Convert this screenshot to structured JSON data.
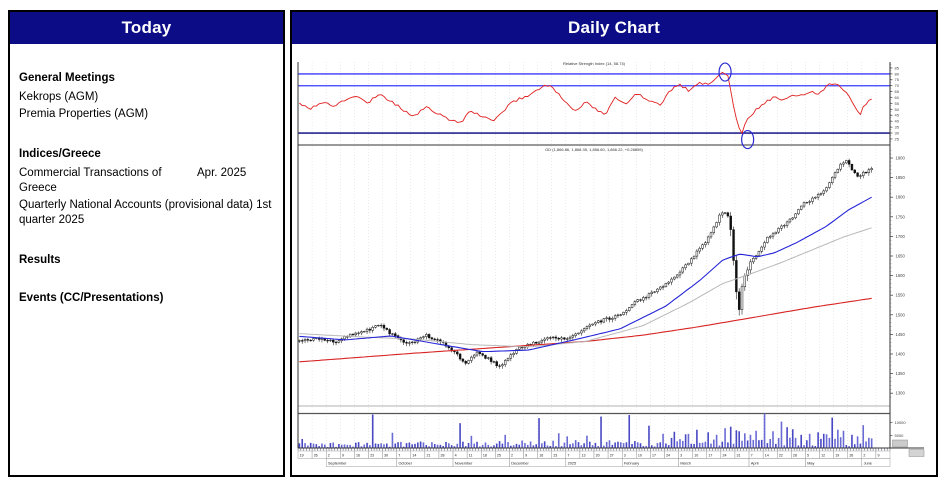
{
  "left_panel": {
    "title": "Today",
    "sections": [
      {
        "heading": "General Meetings",
        "items": [
          "Kekrops (AGM)",
          "Premia Properties (AGM)"
        ]
      },
      {
        "heading": "Indices/Greece",
        "items": [
          {
            "text": "Commercial Transactions of Greece",
            "note": "Apr. 2025"
          },
          {
            "text": "Quarterly National Accounts (provisional data) 1st quarter 2025",
            "note": ""
          }
        ]
      },
      {
        "heading": "Results",
        "items": []
      },
      {
        "heading": "Events (CC/Presentations)",
        "items": []
      }
    ]
  },
  "right_panel": {
    "title": "Daily Chart"
  },
  "chart_data": {
    "type": "candlestick",
    "title": "Daily Chart",
    "subcharts": [
      "rsi",
      "price",
      "volume"
    ],
    "colors": {
      "header_navy": "#0c0c86",
      "grid": "#dcdcdc",
      "rsi_line": "#e02020",
      "rsi_band_blue": "#3a3aff",
      "rsi_low_navy": "#00007a",
      "candle": "#111111",
      "ma_short": "#2525d8",
      "ma_mid": "#b8b8b8",
      "ma_long": "#d82525",
      "volume_bars": [
        "#6a6ad4",
        "#4848c4"
      ],
      "annotation_blue": "#2a2ad0"
    },
    "trading_days": 204,
    "axis_days": 210,
    "rsi": {
      "label": "Relative Strength Index (14, 58.74)",
      "band_levels": [
        80,
        70
      ],
      "oversold_level": 30,
      "axis_ticks": [
        85,
        80,
        75,
        70,
        65,
        60,
        55,
        50,
        45,
        40,
        35,
        30,
        25
      ],
      "ylim": [
        23,
        88
      ],
      "anchors": [
        [
          0,
          55
        ],
        [
          0.02,
          51
        ],
        [
          0.04,
          56
        ],
        [
          0.06,
          53
        ],
        [
          0.08,
          58
        ],
        [
          0.1,
          61
        ],
        [
          0.12,
          56
        ],
        [
          0.14,
          63
        ],
        [
          0.16,
          57
        ],
        [
          0.18,
          50
        ],
        [
          0.2,
          44
        ],
        [
          0.22,
          52
        ],
        [
          0.24,
          47
        ],
        [
          0.26,
          42
        ],
        [
          0.28,
          38
        ],
        [
          0.3,
          49
        ],
        [
          0.32,
          44
        ],
        [
          0.34,
          40
        ],
        [
          0.37,
          56
        ],
        [
          0.4,
          62
        ],
        [
          0.42,
          68
        ],
        [
          0.435,
          71
        ],
        [
          0.45,
          64
        ],
        [
          0.47,
          54
        ],
        [
          0.485,
          48
        ],
        [
          0.5,
          57
        ],
        [
          0.52,
          49
        ],
        [
          0.535,
          45
        ],
        [
          0.55,
          60
        ],
        [
          0.57,
          55
        ],
        [
          0.59,
          64
        ],
        [
          0.61,
          58
        ],
        [
          0.63,
          54
        ],
        [
          0.65,
          67
        ],
        [
          0.665,
          71
        ],
        [
          0.68,
          66
        ],
        [
          0.7,
          73
        ],
        [
          0.715,
          70
        ],
        [
          0.73,
          78
        ],
        [
          0.74,
          82
        ],
        [
          0.748,
          80
        ],
        [
          0.752,
          72
        ],
        [
          0.758,
          55
        ],
        [
          0.764,
          42
        ],
        [
          0.769,
          33
        ],
        [
          0.774,
          30
        ],
        [
          0.78,
          40
        ],
        [
          0.79,
          44
        ],
        [
          0.8,
          51
        ],
        [
          0.815,
          56
        ],
        [
          0.83,
          61
        ],
        [
          0.845,
          58
        ],
        [
          0.86,
          63
        ],
        [
          0.875,
          61
        ],
        [
          0.89,
          65
        ],
        [
          0.905,
          63
        ],
        [
          0.92,
          69
        ],
        [
          0.935,
          73
        ],
        [
          0.945,
          69
        ],
        [
          0.955,
          64
        ],
        [
          0.965,
          58
        ],
        [
          0.972,
          52
        ],
        [
          0.978,
          44
        ],
        [
          0.988,
          54
        ],
        [
          1,
          59
        ]
      ],
      "annotations": [
        {
          "shape": "ellipse",
          "day": 151,
          "value": 82
        },
        {
          "shape": "ellipse",
          "day": 159,
          "value": 30
        }
      ]
    },
    "price": {
      "label": "GD (1,866.86, 1,868.35, 1,856.60, 1,866.22, +0.28859)",
      "axis_ticks": [
        1900,
        1850,
        1800,
        1750,
        1700,
        1650,
        1600,
        1550,
        1500,
        1450,
        1400,
        1350,
        1300
      ],
      "ylim": [
        1290,
        1920
      ],
      "crash_window": [
        0.75,
        0.79
      ],
      "close_anchors": [
        [
          0,
          1432
        ],
        [
          0.03,
          1442
        ],
        [
          0.06,
          1430
        ],
        [
          0.09,
          1450
        ],
        [
          0.12,
          1462
        ],
        [
          0.14,
          1475
        ],
        [
          0.16,
          1452
        ],
        [
          0.19,
          1424
        ],
        [
          0.22,
          1448
        ],
        [
          0.25,
          1430
        ],
        [
          0.27,
          1405
        ],
        [
          0.29,
          1378
        ],
        [
          0.31,
          1402
        ],
        [
          0.33,
          1388
        ],
        [
          0.35,
          1368
        ],
        [
          0.38,
          1412
        ],
        [
          0.41,
          1428
        ],
        [
          0.44,
          1442
        ],
        [
          0.47,
          1438
        ],
        [
          0.5,
          1468
        ],
        [
          0.53,
          1486
        ],
        [
          0.56,
          1498
        ],
        [
          0.59,
          1535
        ],
        [
          0.62,
          1558
        ],
        [
          0.65,
          1588
        ],
        [
          0.68,
          1632
        ],
        [
          0.71,
          1688
        ],
        [
          0.735,
          1755
        ],
        [
          0.745,
          1765
        ],
        [
          0.752,
          1738
        ],
        [
          0.758,
          1645
        ],
        [
          0.764,
          1545
        ],
        [
          0.769,
          1505
        ],
        [
          0.774,
          1585
        ],
        [
          0.78,
          1612
        ],
        [
          0.8,
          1658
        ],
        [
          0.82,
          1700
        ],
        [
          0.84,
          1722
        ],
        [
          0.86,
          1745
        ],
        [
          0.88,
          1782
        ],
        [
          0.9,
          1798
        ],
        [
          0.915,
          1812
        ],
        [
          0.93,
          1848
        ],
        [
          0.945,
          1882
        ],
        [
          0.955,
          1896
        ],
        [
          0.965,
          1872
        ],
        [
          0.975,
          1850
        ],
        [
          0.985,
          1862
        ],
        [
          1,
          1870
        ]
      ],
      "ma_short_anchors": [
        [
          0,
          1445
        ],
        [
          0.08,
          1436
        ],
        [
          0.16,
          1446
        ],
        [
          0.24,
          1426
        ],
        [
          0.32,
          1406
        ],
        [
          0.4,
          1410
        ],
        [
          0.48,
          1436
        ],
        [
          0.56,
          1464
        ],
        [
          0.64,
          1522
        ],
        [
          0.7,
          1588
        ],
        [
          0.74,
          1640
        ],
        [
          0.77,
          1655
        ],
        [
          0.8,
          1648
        ],
        [
          0.83,
          1658
        ],
        [
          0.87,
          1685
        ],
        [
          0.92,
          1725
        ],
        [
          0.96,
          1768
        ],
        [
          1,
          1800
        ]
      ],
      "ma_mid_anchors": [
        [
          0,
          1452
        ],
        [
          0.1,
          1444
        ],
        [
          0.2,
          1438
        ],
        [
          0.3,
          1424
        ],
        [
          0.4,
          1418
        ],
        [
          0.5,
          1432
        ],
        [
          0.6,
          1472
        ],
        [
          0.68,
          1530
        ],
        [
          0.74,
          1580
        ],
        [
          0.78,
          1600
        ],
        [
          0.84,
          1632
        ],
        [
          0.9,
          1668
        ],
        [
          0.95,
          1698
        ],
        [
          1,
          1722
        ]
      ],
      "ma_long_anchors": [
        [
          0,
          1380
        ],
        [
          0.2,
          1402
        ],
        [
          0.4,
          1422
        ],
        [
          0.5,
          1432
        ],
        [
          0.6,
          1448
        ],
        [
          0.7,
          1470
        ],
        [
          0.8,
          1495
        ],
        [
          0.9,
          1520
        ],
        [
          1,
          1542
        ]
      ]
    },
    "volume": {
      "axis_ticks": [
        10000,
        5000
      ],
      "ylim": [
        0,
        13800
      ],
      "base_range": [
        300,
        1800
      ],
      "spikes": [
        [
          0.13,
          13200
        ],
        [
          0.165,
          6000
        ],
        [
          0.28,
          9800
        ],
        [
          0.3,
          4800
        ],
        [
          0.36,
          5200
        ],
        [
          0.42,
          11800
        ],
        [
          0.47,
          4600
        ],
        [
          0.527,
          12400
        ],
        [
          0.575,
          13000
        ],
        [
          0.61,
          8800
        ],
        [
          0.635,
          5600
        ],
        [
          0.655,
          6400
        ],
        [
          0.675,
          5400
        ],
        [
          0.695,
          7200
        ],
        [
          0.715,
          6200
        ],
        [
          0.73,
          5200
        ],
        [
          0.745,
          7800
        ],
        [
          0.755,
          8400
        ],
        [
          0.762,
          7000
        ],
        [
          0.769,
          6600
        ],
        [
          0.78,
          5800
        ],
        [
          0.79,
          5200
        ],
        [
          0.8,
          6800
        ],
        [
          0.815,
          13600
        ],
        [
          0.83,
          6600
        ],
        [
          0.842,
          10400
        ],
        [
          0.852,
          8200
        ],
        [
          0.862,
          7400
        ],
        [
          0.875,
          5200
        ],
        [
          0.89,
          5600
        ],
        [
          0.905,
          6200
        ],
        [
          0.92,
          5400
        ],
        [
          0.932,
          12000
        ],
        [
          0.94,
          7200
        ],
        [
          0.952,
          6800
        ],
        [
          0.965,
          5200
        ],
        [
          0.975,
          4600
        ],
        [
          0.985,
          9000
        ],
        [
          1,
          3800
        ]
      ]
    },
    "x_axis": {
      "pre_days": [
        "19",
        "26"
      ],
      "months": [
        {
          "label": "September",
          "days": [
            "2",
            "9",
            "16",
            "23",
            "30"
          ]
        },
        {
          "label": "October",
          "days": [
            "7",
            "14",
            "21",
            "28"
          ]
        },
        {
          "label": "November",
          "days": [
            "4",
            "11",
            "18",
            "25"
          ]
        },
        {
          "label": "December",
          "days": [
            "2",
            "9",
            "16",
            "23"
          ]
        },
        {
          "label": "2025",
          "days": [
            "7",
            "13",
            "20",
            "27"
          ]
        },
        {
          "label": "February",
          "days": [
            "3",
            "10",
            "17",
            "24"
          ]
        },
        {
          "label": "March",
          "days": [
            "3",
            "10",
            "17",
            "24",
            "31"
          ]
        },
        {
          "label": "April",
          "days": [
            "7",
            "14",
            "22",
            "28"
          ]
        },
        {
          "label": "May",
          "days": [
            "5",
            "12",
            "19",
            "26"
          ]
        },
        {
          "label": "June",
          "days": [
            "2",
            "9"
          ]
        }
      ]
    }
  }
}
